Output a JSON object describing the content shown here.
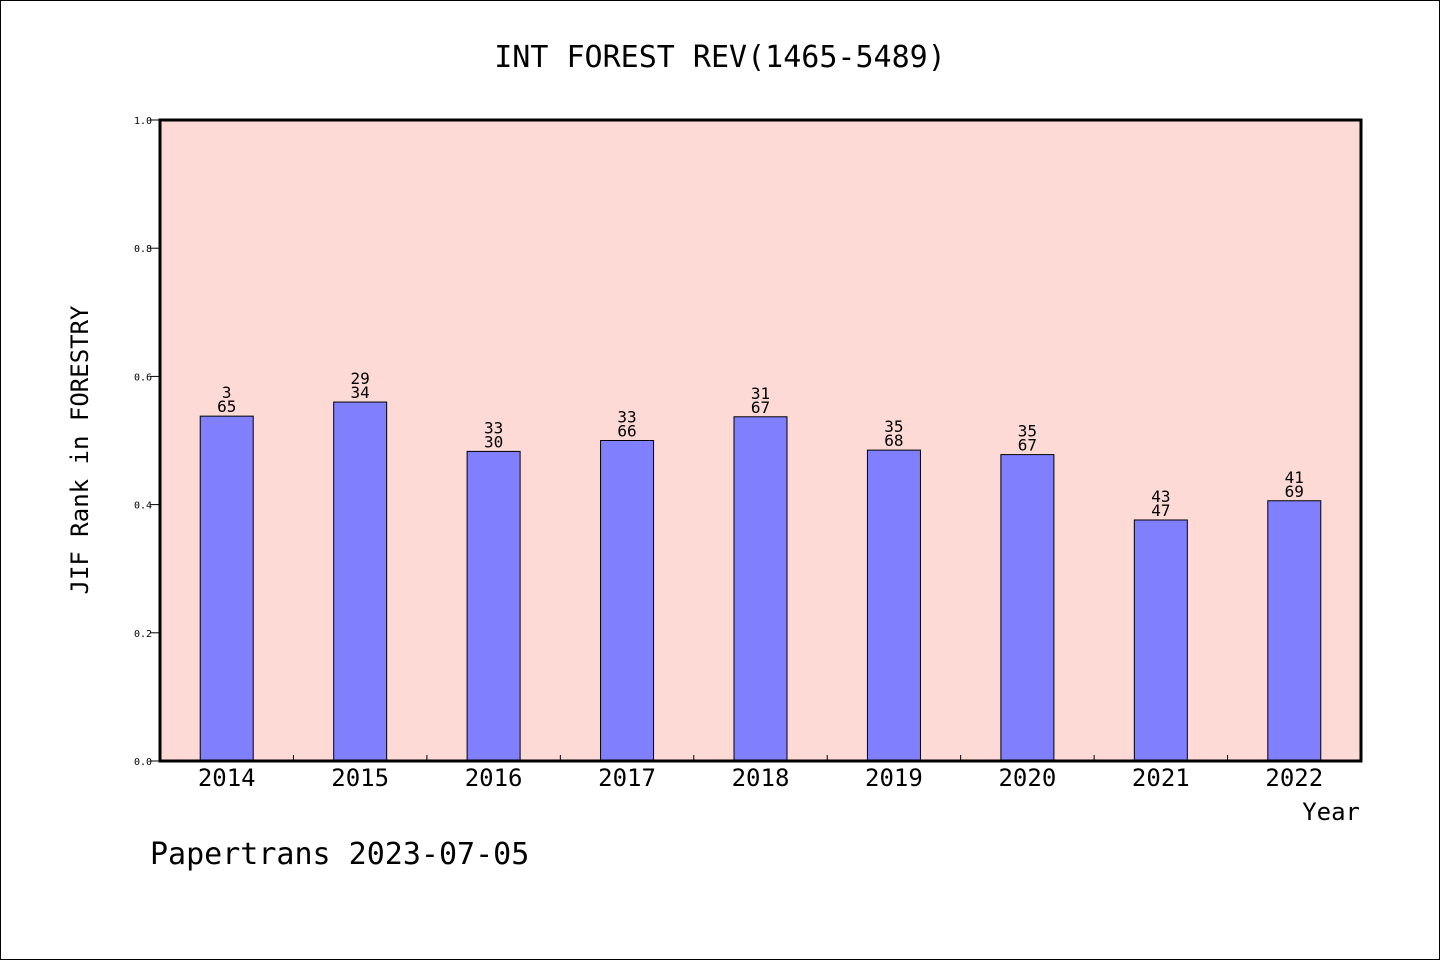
{
  "chart_data": {
    "type": "bar",
    "title": "INT FOREST REV(1465-5489)",
    "xlabel": "Year",
    "ylabel": "JIF Rank in FORESTRY",
    "ylim": [
      0,
      1.0
    ],
    "yticks": [
      "0.0",
      "0.2",
      "0.4",
      "0.6",
      "0.8",
      "1.0"
    ],
    "categories": [
      "2014",
      "2015",
      "2016",
      "2017",
      "2018",
      "2019",
      "2020",
      "2021",
      "2022"
    ],
    "values": [
      0.538,
      0.56,
      0.483,
      0.5,
      0.537,
      0.485,
      0.478,
      0.376,
      0.406
    ],
    "labels_top": [
      "3",
      "29",
      "33",
      "33",
      "31",
      "35",
      "35",
      "43",
      "41"
    ],
    "labels_bottom": [
      "65",
      "34",
      "30",
      "66",
      "67",
      "68",
      "67",
      "47",
      "69"
    ],
    "grid": false,
    "colors": {
      "bar": "#8080ff",
      "plot_bg": "#fddad6",
      "bar_edge": "#000000"
    }
  },
  "footer": "Papertrans 2023-07-05"
}
